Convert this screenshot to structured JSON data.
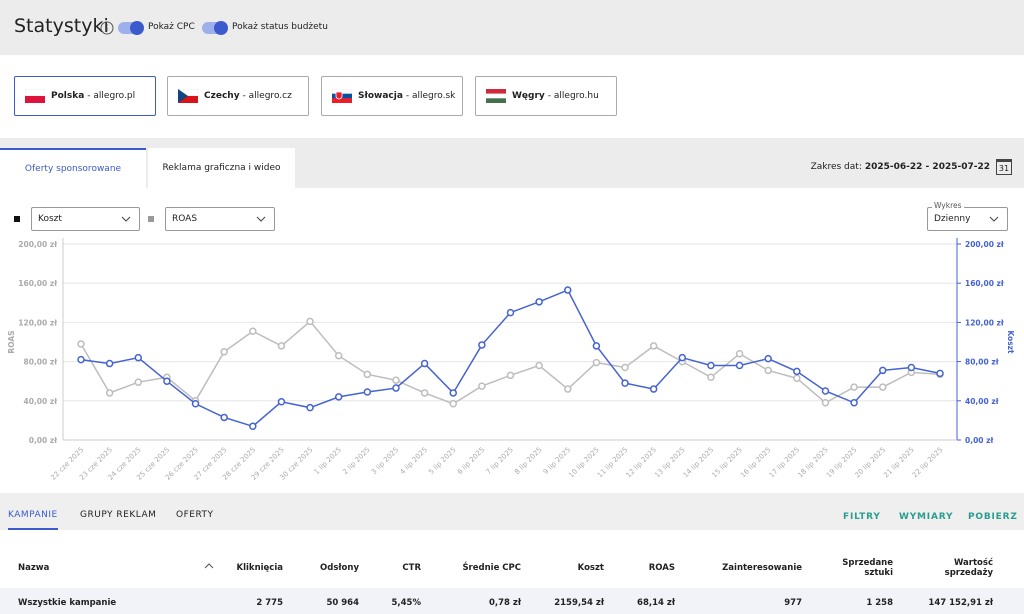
{
  "header": {
    "title": "Statystyki",
    "toggles": [
      "Pokaż CPC",
      "Pokaż status budżetu"
    ]
  },
  "markets": [
    {
      "country": "Polska",
      "domain": "- allegro.pl"
    },
    {
      "country": "Czechy",
      "domain": "- allegro.cz"
    },
    {
      "country": "Słowacja",
      "domain": "- allegro.sk"
    },
    {
      "country": "Węgry",
      "domain": "- allegro.hu"
    }
  ],
  "tabs": [
    "Oferty sponsorowane",
    "Reklama graficzna i wideo"
  ],
  "date_range": {
    "label": "Zakres dat:",
    "value": "2025-06-22 - 2025-07-22",
    "calendar_day": "31"
  },
  "controls": {
    "metric_left": "Koszt",
    "metric_right": "ROAS",
    "chart_type_label": "Wykres",
    "chart_type": "Dzienny"
  },
  "chart": {
    "type": "line",
    "y_label": "ROAS",
    "y2_label": "Koszt",
    "x": [
      "22 cze 2025",
      "23 cze 2025",
      "24 cze 2025",
      "25 cze 2025",
      "26 cze 2025",
      "27 cze 2025",
      "28 cze 2025",
      "29 cze 2025",
      "30 cze 2025",
      "1 lip 2025",
      "2 lip 2025",
      "3 lip 2025",
      "4 lip 2025",
      "5 lip 2025",
      "6 lip 2025",
      "7 lip 2025",
      "8 lip 2025",
      "9 lip 2025",
      "10 lip 2025",
      "11 lip 2025",
      "12 lip 2025",
      "13 lip 2025",
      "14 lip 2025",
      "15 lip 2025",
      "16 lip 2025",
      "17 lip 2025",
      "18 lip 2025",
      "19 lip 2025",
      "20 lip 2025",
      "21 lip 2025",
      "22 lip 2025"
    ],
    "ylim": [
      0,
      200
    ],
    "yticks": [
      {
        "value": 0,
        "label": "0,00 zł"
      },
      {
        "value": 40,
        "label": "40,00 zł"
      },
      {
        "value": 80,
        "label": "80,00 zł"
      },
      {
        "value": 120,
        "label": "120,00 zł"
      },
      {
        "value": 160,
        "label": "160,00 zł"
      },
      {
        "value": 200,
        "label": "200,00 zł"
      }
    ],
    "y2lim": [
      0,
      200
    ],
    "y2ticks": [
      {
        "value": 0,
        "label": "0,00 zł"
      },
      {
        "value": 40,
        "label": "40,00 zł"
      },
      {
        "value": 80,
        "label": "80,00 zł"
      },
      {
        "value": 120,
        "label": "120,00 zł"
      },
      {
        "value": 160,
        "label": "160,00 zł"
      },
      {
        "value": 200,
        "label": "200,00 zł"
      }
    ],
    "grid": true,
    "series": [
      {
        "name": "ROAS",
        "color": "#bdbdbd",
        "axis": "y",
        "values": [
          98,
          48,
          59,
          64,
          40,
          90,
          111,
          96,
          121,
          86,
          67,
          61,
          48,
          37,
          55,
          66,
          76,
          52,
          79,
          74,
          96,
          80,
          64,
          88,
          71,
          63,
          38,
          54,
          54,
          69,
          67
        ]
      },
      {
        "name": "Koszt",
        "color": "#4563d1",
        "axis": "y2",
        "values": [
          82,
          78,
          84,
          60,
          37,
          23,
          14,
          39,
          33,
          44,
          49,
          53,
          78,
          48,
          97,
          130,
          141,
          153,
          96,
          58,
          52,
          84,
          76,
          76,
          83,
          70,
          50,
          38,
          71,
          74,
          68
        ]
      }
    ]
  },
  "table_tabs": [
    "KAMPANIE",
    "GRUPY REKLAM",
    "OFERTY"
  ],
  "table_actions": [
    "FILTRY",
    "WYMIARY",
    "POBIERZ"
  ],
  "table": {
    "columns": [
      "Nazwa",
      "Kliknięcia",
      "Odsłony",
      "CTR",
      "Średnie CPC",
      "Koszt",
      "ROAS",
      "Zainteresowanie",
      "Sprzedane sztuki",
      "Wartość sprzedaży"
    ],
    "rows": [
      [
        "Wszystkie kampanie",
        "2 775",
        "50 964",
        "5,45%",
        "0,78 zł",
        "2159,54 zł",
        "68,14 zł",
        "977",
        "1 258",
        "147 152,91 zł"
      ]
    ]
  }
}
